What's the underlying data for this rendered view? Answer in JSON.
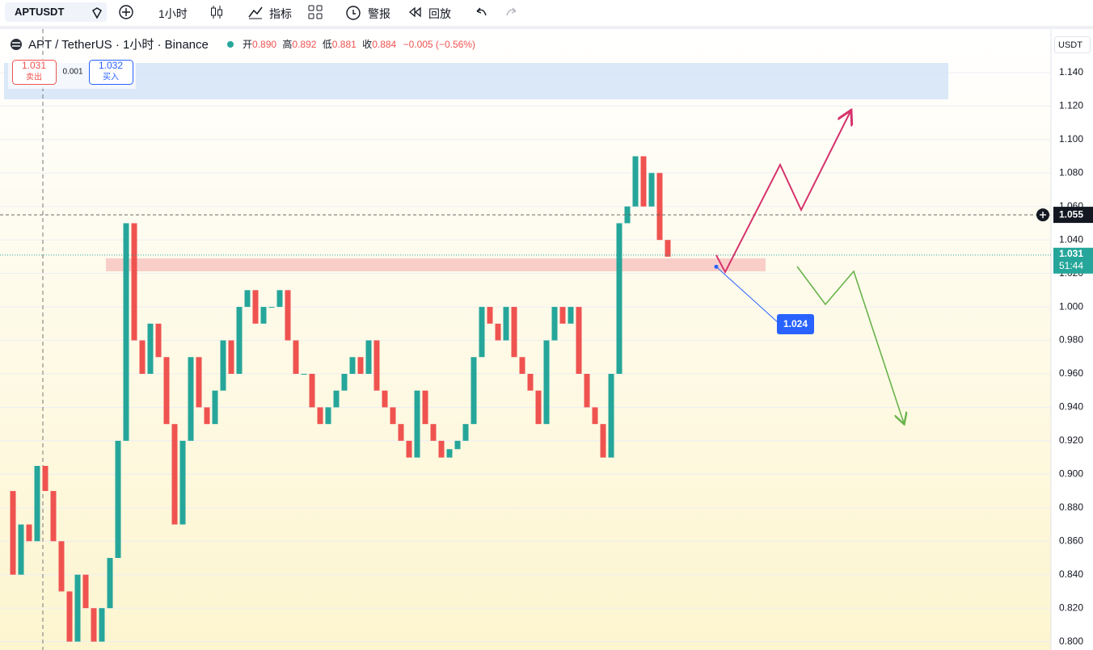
{
  "toolbar": {
    "symbol": "APTUSDT",
    "interval": "1小时",
    "indicators": "指标",
    "alerts": "警报",
    "replay": "回放"
  },
  "legend": {
    "title": "APT / TetherUS · 1小时 · Binance",
    "open_label": "开",
    "open": "0.890",
    "high_label": "高",
    "high": "0.892",
    "low_label": "低",
    "low": "0.881",
    "close_label": "收",
    "close": "0.884",
    "change": "−0.005 (−0.56%)"
  },
  "trade": {
    "sell_price": "1.031",
    "sell_label": "卖出",
    "spread": "0.001",
    "buy_price": "1.032",
    "buy_label": "买入"
  },
  "chart_data": {
    "type": "candlestick",
    "up_color": "#26a69a",
    "down_color": "#ef5350",
    "values": [
      0.89,
      0.84,
      0.87,
      0.86,
      0.905,
      0.89,
      0.86,
      0.83,
      0.8,
      0.84,
      0.82,
      0.8,
      0.82,
      0.85,
      0.92,
      1.05,
      0.98,
      0.96,
      0.99,
      0.97,
      0.93,
      0.87,
      0.92,
      0.97,
      0.94,
      0.93,
      0.95,
      0.98,
      0.96,
      1.0,
      1.01,
      0.99,
      1.0,
      1.0,
      1.01,
      0.98,
      0.96,
      0.96,
      0.94,
      0.93,
      0.94,
      0.95,
      0.96,
      0.97,
      0.96,
      0.98,
      0.95,
      0.94,
      0.93,
      0.92,
      0.91,
      0.95,
      0.93,
      0.92,
      0.91,
      0.915,
      0.92,
      0.93,
      0.97,
      1.0,
      0.99,
      0.98,
      1.0,
      0.97,
      0.96,
      0.95,
      0.93,
      0.98,
      1.0,
      0.99,
      1.0,
      0.96,
      0.94,
      0.93,
      0.91,
      0.96,
      1.05,
      1.06,
      1.09,
      1.06,
      1.08,
      1.04,
      1.03
    ],
    "ylim": [
      0.795,
      1.166
    ],
    "yticks": [
      {
        "value": 0.8,
        "label": "0.800"
      },
      {
        "value": 0.82,
        "label": "0.820"
      },
      {
        "value": 0.84,
        "label": "0.840"
      },
      {
        "value": 0.86,
        "label": "0.860"
      },
      {
        "value": 0.88,
        "label": "0.880"
      },
      {
        "value": 0.9,
        "label": "0.900"
      },
      {
        "value": 0.92,
        "label": "0.920"
      },
      {
        "value": 0.94,
        "label": "0.940"
      },
      {
        "value": 0.96,
        "label": "0.960"
      },
      {
        "value": 0.98,
        "label": "0.980"
      },
      {
        "value": 1.0,
        "label": "1.000"
      },
      {
        "value": 1.02,
        "label": "1.020"
      },
      {
        "value": 1.04,
        "label": "1.040"
      },
      {
        "value": 1.06,
        "label": "1.060"
      },
      {
        "value": 1.08,
        "label": "1.080"
      },
      {
        "value": 1.1,
        "label": "1.100"
      },
      {
        "value": 1.12,
        "label": "1.120"
      },
      {
        "value": 1.14,
        "label": "1.140"
      }
    ],
    "currency": "USDT",
    "last_price": {
      "value": 1.055,
      "label": "1.055"
    },
    "current_price": {
      "value": 1.031,
      "label": "1.031"
    },
    "countdown": "51:44",
    "target": {
      "value": 1.024,
      "label": "1.024"
    }
  }
}
